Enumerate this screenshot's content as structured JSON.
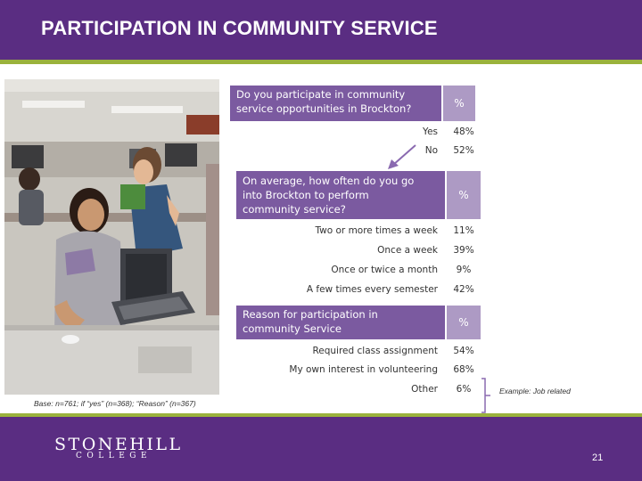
{
  "header": {
    "title": "PARTICIPATION IN COMMUNITY SERVICE"
  },
  "colors": {
    "brand_purple": "#5a2d82",
    "accent_green": "#9ab23c",
    "question_box": "#7b5aa0",
    "percent_box": "#ad9ac4"
  },
  "questions": [
    {
      "question": "Do you participate in community service opportunities in Brockton?",
      "pct_header": "%",
      "rows": [
        {
          "label": "Yes",
          "value": "48%"
        },
        {
          "label": "No",
          "value": "52%"
        }
      ]
    },
    {
      "question": "On average, how often do you go into Brockton to perform community service?",
      "pct_header": "%",
      "rows": [
        {
          "label": "Two or more times a week",
          "value": "11%"
        },
        {
          "label": "Once a week",
          "value": "39%"
        },
        {
          "label": "Once or twice a month",
          "value": "9%"
        },
        {
          "label": "A few times every semester",
          "value": "42%"
        }
      ]
    },
    {
      "question": "Reason for participation in community Service",
      "pct_header": "%",
      "rows": [
        {
          "label": "Required class assignment",
          "value": "54%"
        },
        {
          "label": "My own interest in volunteering",
          "value": "68%"
        },
        {
          "label": "Other",
          "value": "6%"
        }
      ]
    }
  ],
  "note": "Example: Job related",
  "base_note": "Base: n=761; if “yes” (n=368); “Reason” (n=367)",
  "footer": {
    "logo_main": "STONEHILL",
    "logo_sub": "COLLEGE",
    "page_number": "21"
  }
}
